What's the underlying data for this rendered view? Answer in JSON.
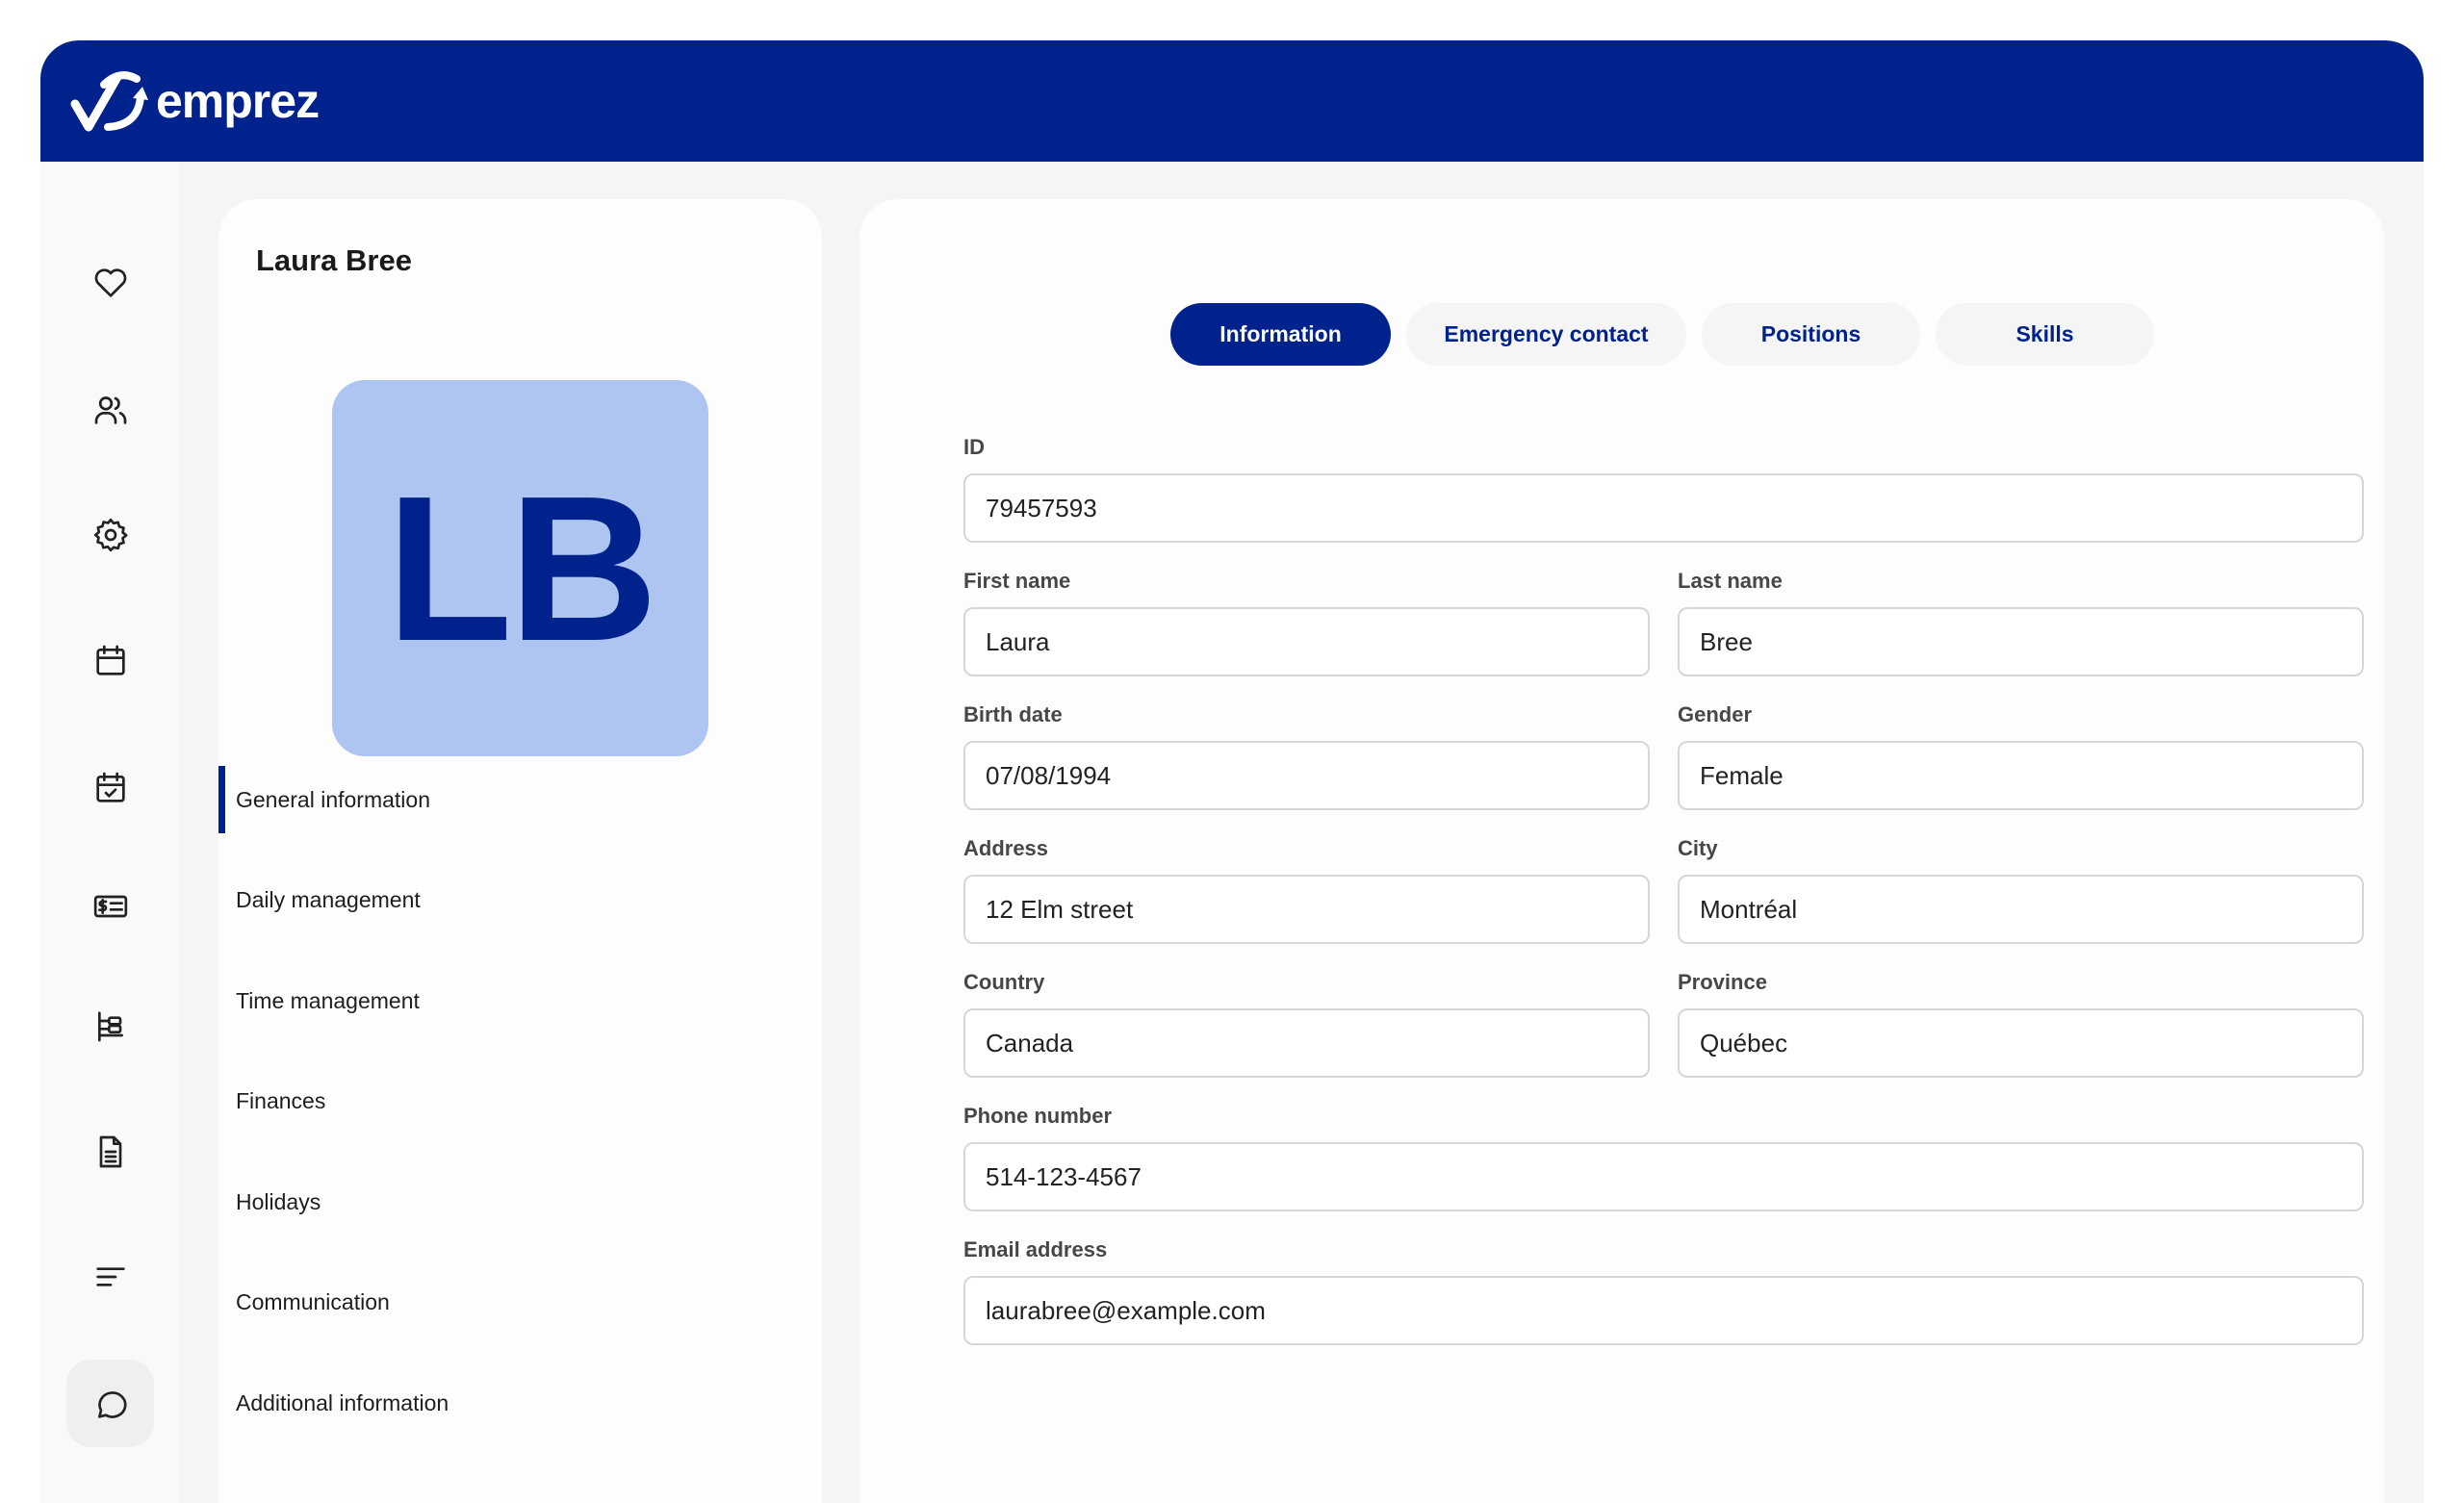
{
  "header": {
    "brand": "emprez",
    "brand_color": "#00228c"
  },
  "rail": {
    "items": [
      {
        "icon": "heart-icon"
      },
      {
        "icon": "users-icon"
      },
      {
        "icon": "gear-icon"
      },
      {
        "icon": "calendar-icon"
      },
      {
        "icon": "calendar-check-icon"
      },
      {
        "icon": "payroll-icon"
      },
      {
        "icon": "org-chart-icon"
      },
      {
        "icon": "document-icon"
      },
      {
        "icon": "list-icon"
      },
      {
        "icon": "chat-icon",
        "active": true
      }
    ]
  },
  "profile": {
    "name": "Laura Bree",
    "initials": "LB",
    "avatar_color": "#adc5f0"
  },
  "menu": {
    "items": [
      {
        "label": "General information",
        "active": true
      },
      {
        "label": "Daily management"
      },
      {
        "label": "Time management"
      },
      {
        "label": "Finances"
      },
      {
        "label": "Holidays"
      },
      {
        "label": "Communication"
      },
      {
        "label": "Additional information"
      }
    ]
  },
  "tabs": [
    {
      "label": "Information",
      "active": true
    },
    {
      "label": "Emergency contact"
    },
    {
      "label": "Positions"
    },
    {
      "label": "Skills"
    }
  ],
  "form": {
    "id": {
      "label": "ID",
      "value": "79457593"
    },
    "first_name": {
      "label": "First name",
      "value": "Laura"
    },
    "last_name": {
      "label": "Last name",
      "value": "Bree"
    },
    "birth_date": {
      "label": "Birth date",
      "value": "07/08/1994"
    },
    "gender": {
      "label": "Gender",
      "value": "Female"
    },
    "address": {
      "label": "Address",
      "value": "12 Elm street"
    },
    "city": {
      "label": "City",
      "value": "Montréal"
    },
    "country": {
      "label": "Country",
      "value": "Canada"
    },
    "province": {
      "label": "Province",
      "value": "Québec"
    },
    "phone": {
      "label": "Phone number",
      "value": "514-123-4567"
    },
    "email": {
      "label": "Email address",
      "value": "laurabree@example.com"
    }
  }
}
